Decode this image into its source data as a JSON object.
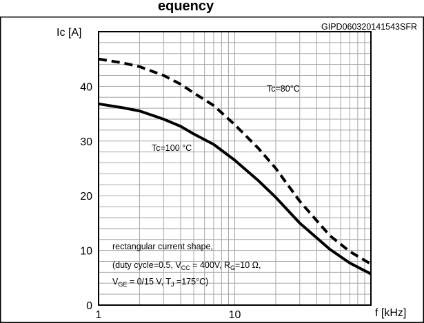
{
  "chart_data": {
    "type": "line",
    "title": "",
    "top_partial_text": "equency",
    "figure_id": "GIPD060320141543SFR",
    "ylabel": "Ic [A]",
    "xlabel": "f [kHz]",
    "xscale": "log",
    "xlim": [
      1,
      100
    ],
    "ylim": [
      0,
      50
    ],
    "xticks": [
      1,
      10
    ],
    "xtick_labels": [
      "1",
      "10"
    ],
    "yticks": [
      0,
      10,
      20,
      30,
      40
    ],
    "ytick_labels": [
      "0",
      "10",
      "20",
      "30",
      "40"
    ],
    "grid": true,
    "series": [
      {
        "name": "Tc=80°C",
        "style": "dashed",
        "x": [
          1,
          1.5,
          2,
          3,
          4,
          5,
          7,
          10,
          15,
          20,
          30,
          50,
          70,
          100
        ],
        "y": [
          45,
          44.3,
          43.6,
          42,
          40.4,
          38.8,
          36.5,
          33,
          28.6,
          25,
          19,
          12.7,
          9.8,
          7.5
        ]
      },
      {
        "name": "Tc=100 °C",
        "style": "solid",
        "x": [
          1,
          1.5,
          2,
          3,
          4,
          5,
          7,
          10,
          15,
          20,
          30,
          50,
          70,
          100
        ],
        "y": [
          36.8,
          36.1,
          35.5,
          34,
          32.7,
          31.3,
          29.4,
          26.5,
          22.7,
          19.7,
          15,
          10.2,
          7.7,
          5.7
        ]
      }
    ],
    "annotation_lines": [
      [
        "rectangular current shape,"
      ],
      [
        "(duty cycle=0.5, V",
        "CC",
        " = 400V, R",
        "G",
        "=10 Ω,"
      ],
      [
        "V",
        "GE",
        " = 0/15 V, T",
        "J",
        " =175°C)"
      ]
    ],
    "colors": {
      "line": "#000000",
      "grid": "#a6a6a6",
      "background": "#ffffff"
    }
  }
}
